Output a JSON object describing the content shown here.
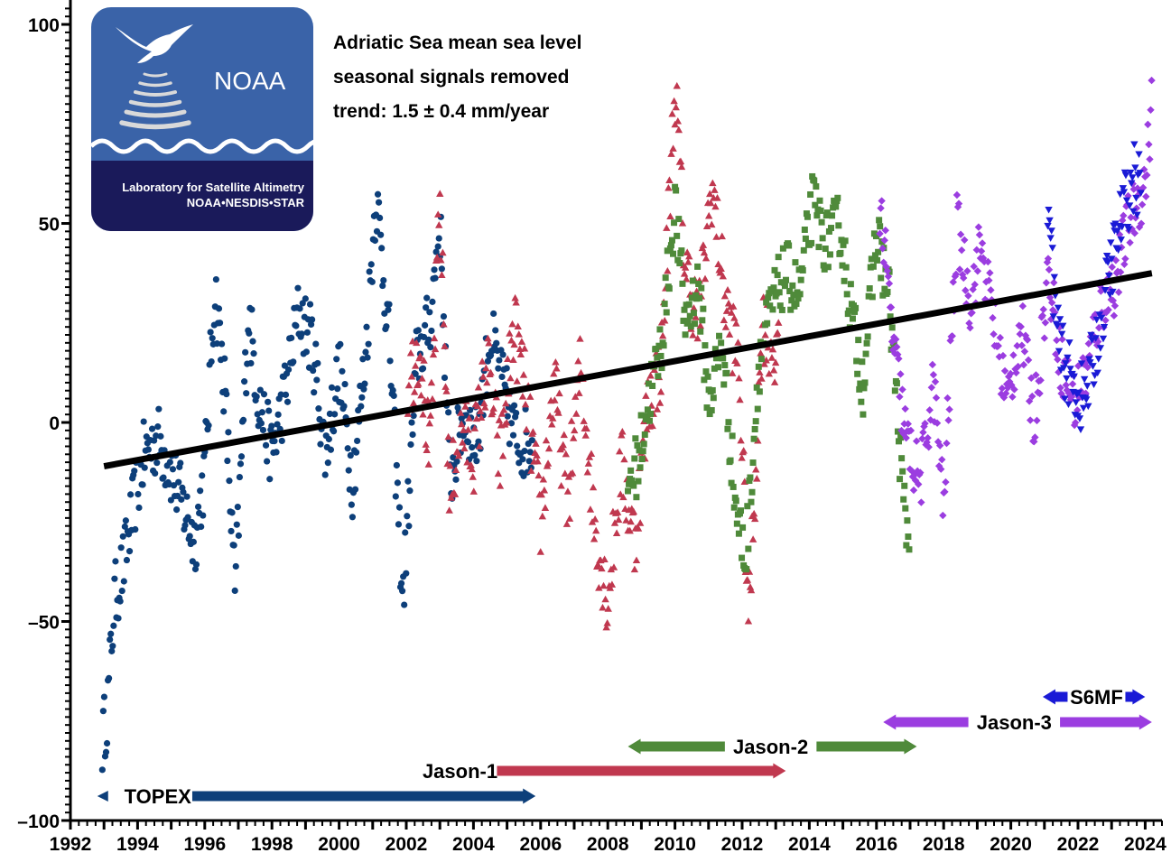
{
  "chart_data": {
    "type": "scatter",
    "title": "",
    "xlabel": "",
    "ylabel": "",
    "xlim": [
      1992,
      2024.5
    ],
    "ylim": [
      -100,
      105
    ],
    "x_ticks": [
      "1992",
      "1994",
      "1996",
      "1998",
      "2000",
      "2002",
      "2004",
      "2006",
      "2008",
      "2010",
      "2012",
      "2014",
      "2016",
      "2018",
      "2020",
      "2022",
      "2024"
    ],
    "y_ticks": [
      {
        "value": 100,
        "label": "100"
      },
      {
        "value": 50,
        "label": "50"
      },
      {
        "value": 0,
        "label": "0"
      },
      {
        "value": -50,
        "label": "–50"
      },
      {
        "value": -100,
        "label": "–100"
      }
    ],
    "annotations": [
      "Adriatic Sea mean sea level",
      "seasonal signals removed",
      "trend:  1.5 ± 0.4 mm/year"
    ],
    "trend": {
      "x": [
        1993.0,
        2024.2
      ],
      "y": [
        -11.0,
        37.5
      ]
    },
    "series": [
      {
        "name": "TOPEX",
        "marker": "circle",
        "color": "#0d3f7a",
        "x_range": [
          1992.95,
          2005.75
        ],
        "anchors": [
          [
            1992.95,
            -80
          ],
          [
            1993.1,
            -72
          ],
          [
            1993.3,
            -45
          ],
          [
            1993.6,
            -35
          ],
          [
            1993.9,
            -20
          ],
          [
            1994.2,
            -8
          ],
          [
            1994.6,
            -4
          ],
          [
            1995.0,
            -12
          ],
          [
            1995.4,
            -22
          ],
          [
            1995.7,
            -30
          ],
          [
            1996.0,
            -12
          ],
          [
            1996.3,
            34
          ],
          [
            1996.6,
            8
          ],
          [
            1996.9,
            -43
          ],
          [
            1997.3,
            28
          ],
          [
            1997.6,
            6
          ],
          [
            1998.0,
            -8
          ],
          [
            1998.4,
            8
          ],
          [
            1998.8,
            28
          ],
          [
            1999.2,
            20
          ],
          [
            1999.6,
            -8
          ],
          [
            2000.0,
            14
          ],
          [
            2000.4,
            -15
          ],
          [
            2000.8,
            18
          ],
          [
            2001.1,
            58
          ],
          [
            2001.5,
            20
          ],
          [
            2001.9,
            -45
          ],
          [
            2002.3,
            15
          ],
          [
            2002.7,
            25
          ],
          [
            2003.0,
            50
          ],
          [
            2003.3,
            -15
          ],
          [
            2003.7,
            2
          ],
          [
            2004.1,
            -5
          ],
          [
            2004.5,
            22
          ],
          [
            2004.9,
            8
          ],
          [
            2005.3,
            -5
          ],
          [
            2005.75,
            -5
          ]
        ],
        "spread": 9
      },
      {
        "name": "Jason-1",
        "marker": "triangle-up",
        "color": "#c0384f",
        "x_range": [
          2002.05,
          2013.1
        ],
        "anchors": [
          [
            2002.05,
            10
          ],
          [
            2002.4,
            20
          ],
          [
            2002.7,
            -10
          ],
          [
            2003.0,
            55
          ],
          [
            2003.3,
            -20
          ],
          [
            2003.6,
            0
          ],
          [
            2004.0,
            -8
          ],
          [
            2004.4,
            15
          ],
          [
            2004.8,
            -10
          ],
          [
            2005.2,
            25
          ],
          [
            2005.6,
            5
          ],
          [
            2006.0,
            -25
          ],
          [
            2006.4,
            10
          ],
          [
            2006.8,
            -20
          ],
          [
            2007.2,
            15
          ],
          [
            2007.6,
            -25
          ],
          [
            2008.0,
            -45
          ],
          [
            2008.4,
            -10
          ],
          [
            2008.8,
            -30
          ],
          [
            2009.2,
            5
          ],
          [
            2009.6,
            15
          ],
          [
            2010.0,
            85
          ],
          [
            2010.3,
            40
          ],
          [
            2010.7,
            25
          ],
          [
            2011.1,
            60
          ],
          [
            2011.5,
            30
          ],
          [
            2011.9,
            15
          ],
          [
            2012.2,
            -50
          ],
          [
            2012.6,
            25
          ],
          [
            2013.1,
            15
          ]
        ],
        "spread": 10
      },
      {
        "name": "Jason-2",
        "marker": "square",
        "color": "#4f8a3a",
        "x_range": [
          2008.6,
          2017.0
        ],
        "anchors": [
          [
            2008.6,
            -15
          ],
          [
            2008.9,
            -10
          ],
          [
            2009.2,
            5
          ],
          [
            2009.6,
            20
          ],
          [
            2010.0,
            55
          ],
          [
            2010.3,
            25
          ],
          [
            2010.7,
            35
          ],
          [
            2011.0,
            5
          ],
          [
            2011.4,
            20
          ],
          [
            2011.8,
            -20
          ],
          [
            2012.1,
            -35
          ],
          [
            2012.5,
            15
          ],
          [
            2012.9,
            30
          ],
          [
            2013.3,
            38
          ],
          [
            2013.7,
            32
          ],
          [
            2014.1,
            55
          ],
          [
            2014.5,
            45
          ],
          [
            2014.9,
            50
          ],
          [
            2015.3,
            25
          ],
          [
            2015.6,
            10
          ],
          [
            2016.0,
            48
          ],
          [
            2016.4,
            30
          ],
          [
            2016.8,
            -20
          ],
          [
            2017.0,
            -32
          ]
        ],
        "spread": 8
      },
      {
        "name": "Jason-3",
        "marker": "diamond",
        "color": "#9b3de0",
        "x_range": [
          2016.1,
          2024.2
        ],
        "anchors": [
          [
            2016.1,
            55
          ],
          [
            2016.5,
            20
          ],
          [
            2016.9,
            -5
          ],
          [
            2017.3,
            -15
          ],
          [
            2017.7,
            10
          ],
          [
            2018.0,
            -22
          ],
          [
            2018.4,
            50
          ],
          [
            2018.8,
            30
          ],
          [
            2019.1,
            45
          ],
          [
            2019.5,
            25
          ],
          [
            2019.9,
            5
          ],
          [
            2020.3,
            25
          ],
          [
            2020.7,
            0
          ],
          [
            2021.1,
            38
          ],
          [
            2021.5,
            15
          ],
          [
            2021.9,
            5
          ],
          [
            2022.3,
            15
          ],
          [
            2022.7,
            30
          ],
          [
            2023.1,
            35
          ],
          [
            2023.5,
            50
          ],
          [
            2024.0,
            60
          ],
          [
            2024.2,
            80
          ]
        ],
        "spread": 8
      },
      {
        "name": "S6MF",
        "marker": "triangle-down",
        "color": "#1a1ad6",
        "x_range": [
          2021.1,
          2023.9
        ],
        "anchors": [
          [
            2021.1,
            55
          ],
          [
            2021.4,
            20
          ],
          [
            2021.8,
            10
          ],
          [
            2022.2,
            5
          ],
          [
            2022.6,
            22
          ],
          [
            2023.0,
            40
          ],
          [
            2023.4,
            55
          ],
          [
            2023.7,
            62
          ],
          [
            2023.9,
            58
          ]
        ],
        "spread": 9
      }
    ],
    "missions": [
      {
        "name": "TOPEX",
        "start": 1992.8,
        "end": 2005.85,
        "row": 0,
        "color": "#0d3f7a",
        "label_x": 1994.6,
        "label_side": "start"
      },
      {
        "name": "Jason-1",
        "start": 2004.7,
        "end": 2013.3,
        "row": 1,
        "color": "#c0384f",
        "label_x": 2003.6,
        "label_side": "before"
      },
      {
        "name": "Jason-2",
        "start": 2008.6,
        "end": 2017.2,
        "row": 2,
        "color": "#4f8a3a",
        "label_x": 2012.85,
        "label_side": "middle"
      },
      {
        "name": "Jason-3",
        "start": 2016.2,
        "end": 2024.2,
        "row": 3,
        "color": "#9b3de0",
        "label_x": 2020.1,
        "label_side": "middle"
      },
      {
        "name": "S6MF",
        "start": 2020.95,
        "end": 2024.0,
        "row": 4,
        "color": "#1a1ad6",
        "label_x": 2022.55,
        "label_side": "middle"
      }
    ],
    "grid": false,
    "legend": "none"
  },
  "logo": {
    "agency": "NOAA",
    "line1": "Laboratory for Satellite Altimetry",
    "line2": "NOAA•NESDIS•STAR",
    "top_color": "#3a63a8",
    "bottom_color": "#1a1a5a"
  }
}
